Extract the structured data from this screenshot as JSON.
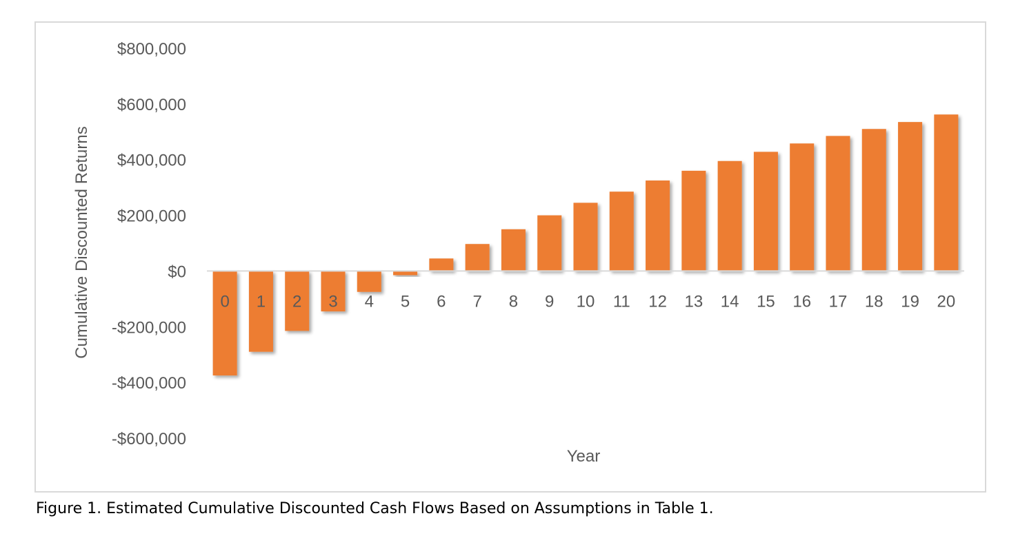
{
  "caption": "Figure 1. Estimated Cumulative Discounted Cash Flows Based on Assumptions in Table 1.",
  "chart_data": {
    "type": "bar",
    "title": "",
    "xlabel": "Year",
    "ylabel": "Cumulative Discounted Returns",
    "categories": [
      "0",
      "1",
      "2",
      "3",
      "4",
      "5",
      "6",
      "7",
      "8",
      "9",
      "10",
      "11",
      "12",
      "13",
      "14",
      "15",
      "16",
      "17",
      "18",
      "19",
      "20"
    ],
    "values": [
      -375000,
      -290000,
      -215000,
      -145000,
      -75000,
      -15000,
      45000,
      97000,
      150000,
      200000,
      245000,
      285000,
      325000,
      360000,
      395000,
      428000,
      458000,
      485000,
      510000,
      535000,
      562000
    ],
    "ylim": [
      -600000,
      800000
    ],
    "yticks": [
      800000,
      600000,
      400000,
      200000,
      0,
      -200000,
      -400000,
      -600000
    ],
    "ytick_labels": [
      "$800,000",
      "$600,000",
      "$400,000",
      "$200,000",
      "$0",
      "-$200,000",
      "-$400,000",
      "-$600,000"
    ],
    "grid": false,
    "legend": "none",
    "bar_color": "#ed7d31"
  }
}
